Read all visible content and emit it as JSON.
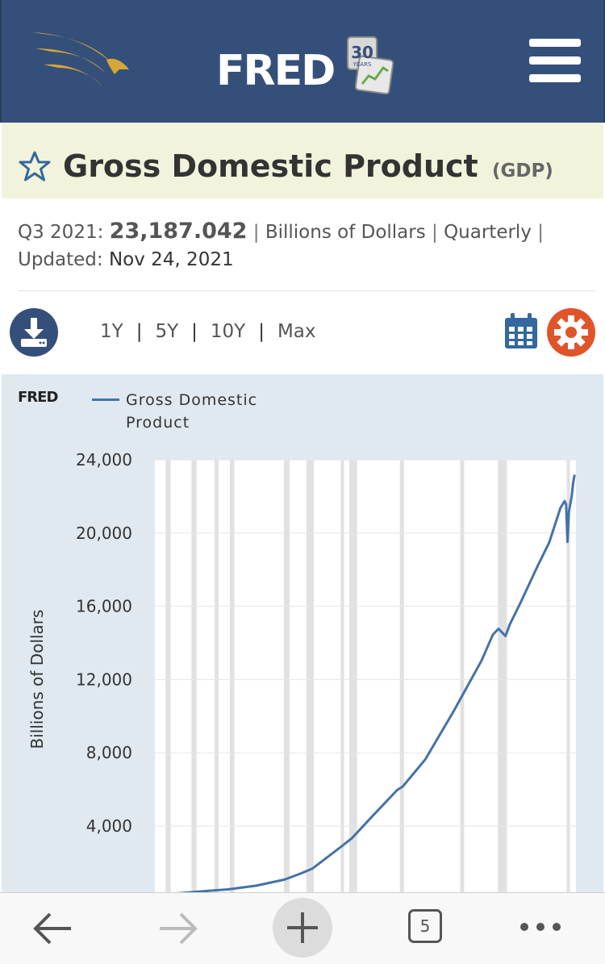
{
  "header": {
    "brand": "FRED",
    "badge_number": "30",
    "badge_text": "YEARS",
    "menu_icon": "hamburger-menu-icon",
    "logo_icon": "eagle-logo-icon"
  },
  "series": {
    "title": "Gross Domestic Product",
    "code": "(GDP)",
    "period": "Q3 2021:",
    "value": "23,187.042",
    "units": "Billions of Dollars",
    "frequency": "Quarterly",
    "updated_label": "Updated:",
    "updated_value": "Nov 24, 2021"
  },
  "toolbar": {
    "ranges": [
      "1Y",
      "5Y",
      "10Y",
      "Max"
    ],
    "download_icon": "download-icon",
    "calendar_icon": "calendar-icon",
    "settings_icon": "gear-icon"
  },
  "chart_data": {
    "type": "line",
    "logo": "FRED",
    "legend": [
      "Gross Domestic Product"
    ],
    "ylabel": "Billions of Dollars",
    "yticks": [
      4000,
      8000,
      12000,
      16000,
      20000,
      24000
    ],
    "ytick_labels": [
      "4,000",
      "8,000",
      "12,000",
      "16,000",
      "20,000",
      "24,000"
    ],
    "ylim": [
      0,
      24000
    ],
    "xlim": [
      1947,
      2021.75
    ],
    "series": [
      {
        "name": "Gross Domestic Product",
        "color": "#4572a7",
        "x": [
          1947,
          1950,
          1955,
          1960,
          1965,
          1970,
          1973,
          1975,
          1980,
          1982,
          1985,
          1990,
          1991,
          1995,
          2000,
          2005,
          2007,
          2008,
          2009.25,
          2010,
          2012,
          2015,
          2017,
          2019,
          2019.75,
          2020,
          2020.25,
          2020.5,
          2021,
          2021.25,
          2021.5
        ],
        "y": [
          243,
          300,
          426,
          543,
          743,
          1073,
          1425,
          1685,
          2857,
          3344,
          4339,
          5963,
          6158,
          7640,
          10252,
          13039,
          14452,
          14770,
          14381,
          15000,
          16254,
          18238,
          19480,
          21381,
          21747,
          21561,
          19520,
          21170,
          22038,
          22741,
          23187
        ]
      }
    ],
    "recessions": [
      [
        1948.9,
        1949.8
      ],
      [
        1953.5,
        1954.4
      ],
      [
        1957.6,
        1958.3
      ],
      [
        1960.3,
        1961.1
      ],
      [
        1969.9,
        1970.9
      ],
      [
        1973.9,
        1975.2
      ],
      [
        1980.0,
        1980.5
      ],
      [
        1981.5,
        1982.9
      ],
      [
        1990.5,
        1991.2
      ],
      [
        2001.2,
        2001.9
      ],
      [
        2007.9,
        2009.5
      ],
      [
        2020.1,
        2020.4
      ]
    ]
  },
  "bottom_nav": {
    "back_icon": "back-arrow-icon",
    "forward_icon": "forward-arrow-icon",
    "new_tab_icon": "plus-icon",
    "tab_count": "5",
    "more_icon": "more-dots-icon"
  }
}
